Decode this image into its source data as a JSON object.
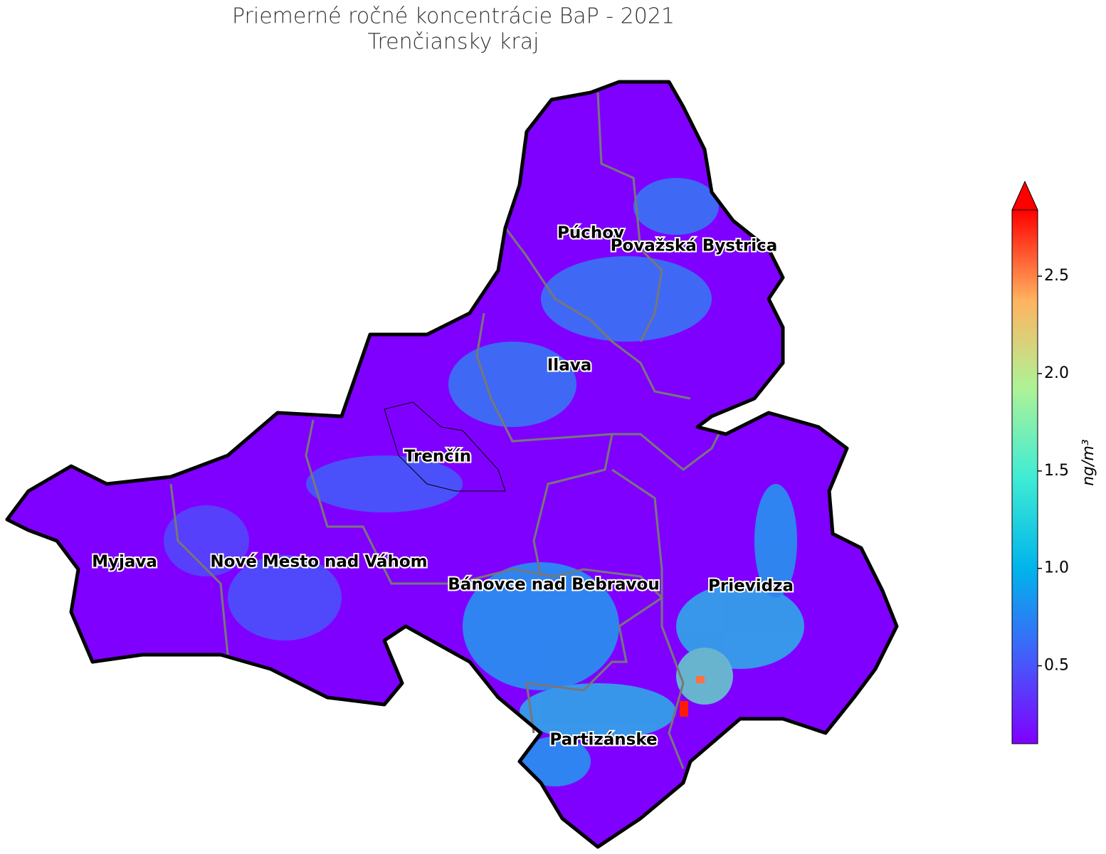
{
  "title": "Priemerné ročné koncentrácie BaP - 2021",
  "subtitle": "Trenčiansky kraj",
  "district_labels": [
    "Púchov",
    "Považská Bystrica",
    "Ilava",
    "Trenčín",
    "Myjava",
    "Nové Mesto nad Váhom",
    "Bánovce nad Bebravou",
    "Prievidza",
    "Partizánske"
  ],
  "colorbar": {
    "label": "ng/m³",
    "clim": [
      0.1,
      2.84
    ],
    "ticks": [
      0.5,
      {
        "value": 1.0,
        "label": "1.0"
      },
      1.5,
      {
        "value": 2.0,
        "label": "2.0"
      },
      2.5
    ],
    "colormap": "rainbow",
    "extend": "max"
  }
}
